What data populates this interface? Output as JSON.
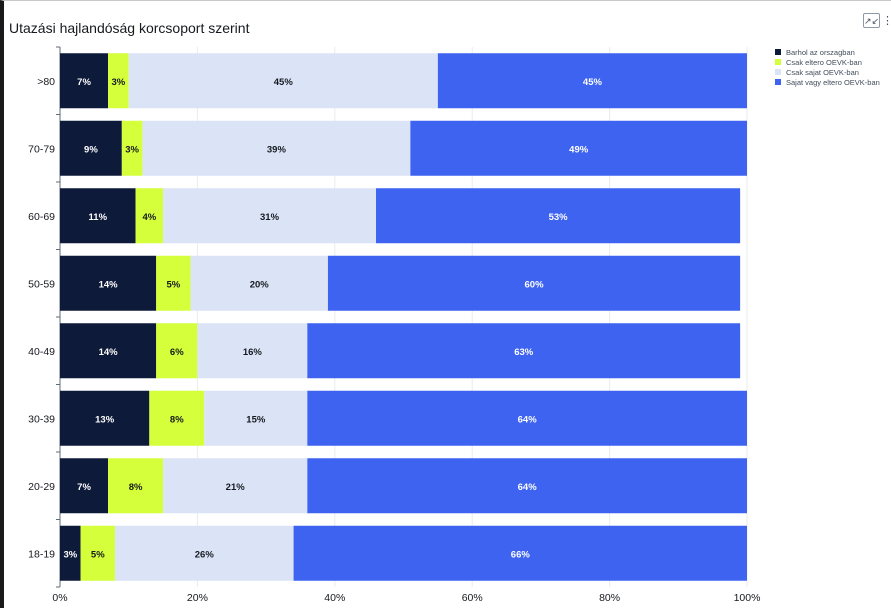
{
  "header": {
    "title": "Utazási hajlandóság korcsoport szerint",
    "expand_icon": "collapse-arrows-icon",
    "menu_icon": "vertical-dots-icon"
  },
  "chart_data": {
    "type": "bar",
    "orientation": "horizontal",
    "stacked": "percent",
    "title": "Utazási hajlandóság korcsoport szerint",
    "categories": [
      ">80",
      "70-79",
      "60-69",
      "50-59",
      "40-49",
      "30-39",
      "20-29",
      "18-19"
    ],
    "series": [
      {
        "name": "Barhol az orszagban",
        "color": "#0e1a3a",
        "label_color": "#ffffff",
        "values": [
          7,
          9,
          11,
          14,
          14,
          13,
          7,
          3
        ]
      },
      {
        "name": "Csak eltero OEVK-ban",
        "color": "#d4ff3a",
        "label_color": "#16191f",
        "values": [
          3,
          3,
          4,
          5,
          6,
          8,
          8,
          5
        ]
      },
      {
        "name": "Csak sajat OEVK-ban",
        "color": "#dbe4f7",
        "label_color": "#16191f",
        "values": [
          45,
          39,
          31,
          20,
          16,
          15,
          21,
          26
        ]
      },
      {
        "name": "Sajat vagy eltero OEVK-ban",
        "color": "#3d63f0",
        "label_color": "#ffffff",
        "values": [
          45,
          49,
          53,
          60,
          63,
          64,
          64,
          66
        ]
      }
    ],
    "xaxis_ticks": [
      "0%",
      "20%",
      "40%",
      "60%",
      "80%",
      "100%"
    ],
    "xlim": [
      0,
      100
    ],
    "grid": "vertical",
    "legend_position": "right"
  }
}
